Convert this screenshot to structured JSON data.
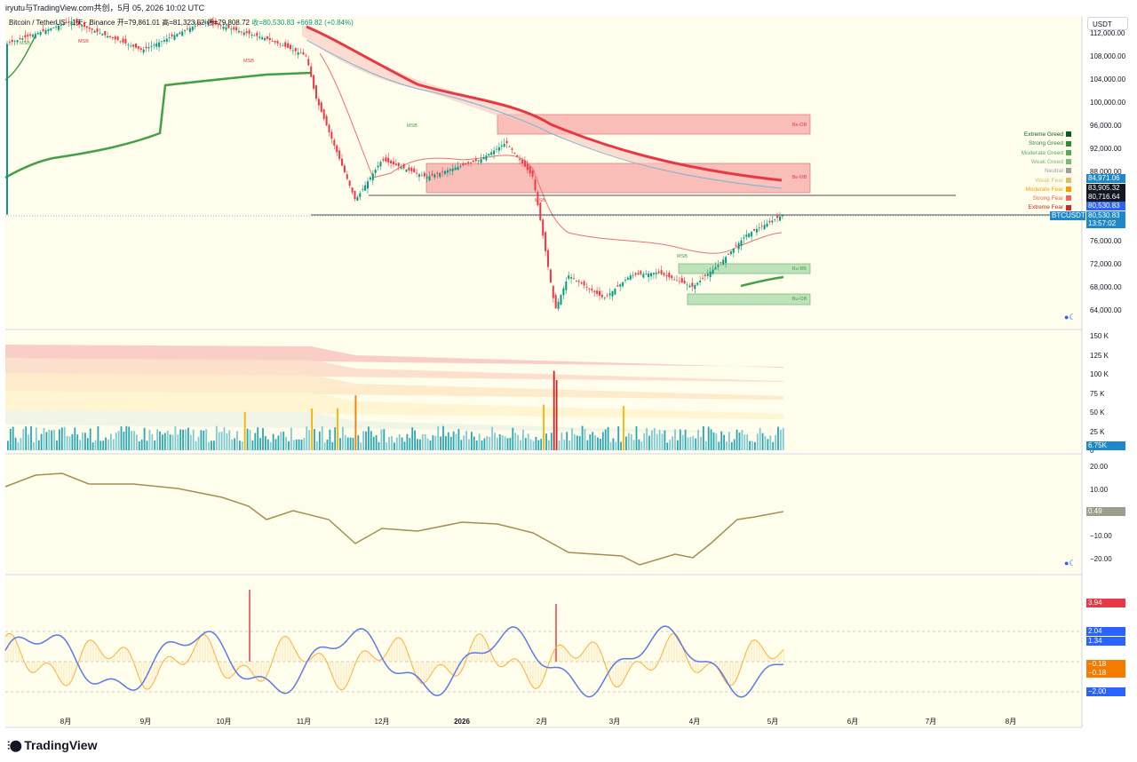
{
  "header": {
    "attribution": "iryutu与TradingView.com共创，5月 05, 2026 10:02 UTC"
  },
  "legend": {
    "symbol": "Bitcoin / TetherUS · 1天 · Binance",
    "open": "开=79,861.01",
    "high": "高=81,323.52",
    "low": "低=79,808.72",
    "close": "收=80,530.83",
    "change": "+669.82 (+0.84%)"
  },
  "currency_button": "USDT",
  "brand": "TradingView",
  "colors": {
    "up": "#089981",
    "down": "#f23645",
    "bg_panel": "#fffdeb",
    "green_line": "#43a047",
    "red_line": "#e53945",
    "blue_line": "#5b7be6",
    "orange_line": "#f7b13d"
  },
  "fear_greed_legend": [
    {
      "label": "Extreme Greed",
      "color": "#0b5d1e"
    },
    {
      "label": "Strong Greed",
      "color": "#2e8b3a"
    },
    {
      "label": "Moderate Greed",
      "color": "#58a860"
    },
    {
      "label": "Weak Greed",
      "color": "#7cb77c"
    },
    {
      "label": "Neutral",
      "color": "#9e9e9e"
    },
    {
      "label": "Weak Fear",
      "color": "#d9bf73"
    },
    {
      "label": "Moderate Fear",
      "color": "#f59e0b"
    },
    {
      "label": "Strong Fear",
      "color": "#e86a5c"
    },
    {
      "label": "Extreme Fear",
      "color": "#c62828"
    }
  ],
  "price_tags": [
    {
      "text": "84,971.06",
      "color": "#1e88c8"
    },
    {
      "text": "83,905.32",
      "color": "#131722"
    },
    {
      "text": "80,716.64",
      "color": "#131722"
    },
    {
      "text": "80,530.83",
      "color": "#2962ff"
    },
    {
      "text": "BTCUSDT",
      "color": "#1e88c8"
    },
    {
      "text": "80,530.83",
      "color": "#1e88c8"
    },
    {
      "text": "13:57:02",
      "color": "#1e88c8"
    }
  ],
  "chart_data": [
    {
      "type": "candlestick",
      "title": "",
      "x_ticks": [
        "8月",
        "9月",
        "10月",
        "11月",
        "12月",
        "2026",
        "2月",
        "3月",
        "4月",
        "5月",
        "6月",
        "7月",
        "8月"
      ],
      "y_ticks": [
        "112,000.00",
        "108,000.00",
        "104,000.00",
        "100,000.00",
        "96,000.00",
        "92,000.00",
        "88,000.00",
        "84,000.00",
        "80,000.00",
        "76,000.00",
        "72,000.00",
        "68,000.00",
        "64,000.00"
      ],
      "ylim": [
        60000,
        116000
      ],
      "annotations": [
        "MSB",
        "MSB",
        "MSB",
        "MSB",
        "MSB",
        "MSB",
        "Be-OB",
        "Be-MB",
        "Bu-BB",
        "Bu-OB"
      ],
      "close_path_approx": [
        {
          "x": "8月",
          "y": 117000
        },
        {
          "x": "9月",
          "y": 110000
        },
        {
          "x": "10月",
          "y": 113000
        },
        {
          "x": "11月",
          "y": 104000
        },
        {
          "x": "12月",
          "y": 88000
        },
        {
          "x": "2026",
          "y": 88000
        },
        {
          "x": "2月",
          "y": 79000
        },
        {
          "x": "2月 mid",
          "y": 65000
        },
        {
          "x": "3月",
          "y": 67000
        },
        {
          "x": "4月",
          "y": 68000
        },
        {
          "x": "5月",
          "y": 80530.83
        }
      ]
    },
    {
      "type": "bar",
      "title": "",
      "y_ticks": [
        "150 K",
        "125 K",
        "100 K",
        "75 K",
        "50 K",
        "25 K",
        "0"
      ],
      "ylim": [
        0,
        150
      ],
      "last_value": "6.75K"
    },
    {
      "type": "line",
      "title": "",
      "y_ticks": [
        "20.00",
        "10.00",
        "−10.00",
        "−20.00"
      ],
      "ylim": [
        -25,
        25
      ],
      "last_value": "0.49"
    },
    {
      "type": "line",
      "title": "",
      "series_values": [
        "3.94",
        "2.04",
        "1.34",
        "−0.18",
        "−0.18",
        "−2.00"
      ],
      "ylim": [
        -3,
        4.5
      ]
    }
  ]
}
